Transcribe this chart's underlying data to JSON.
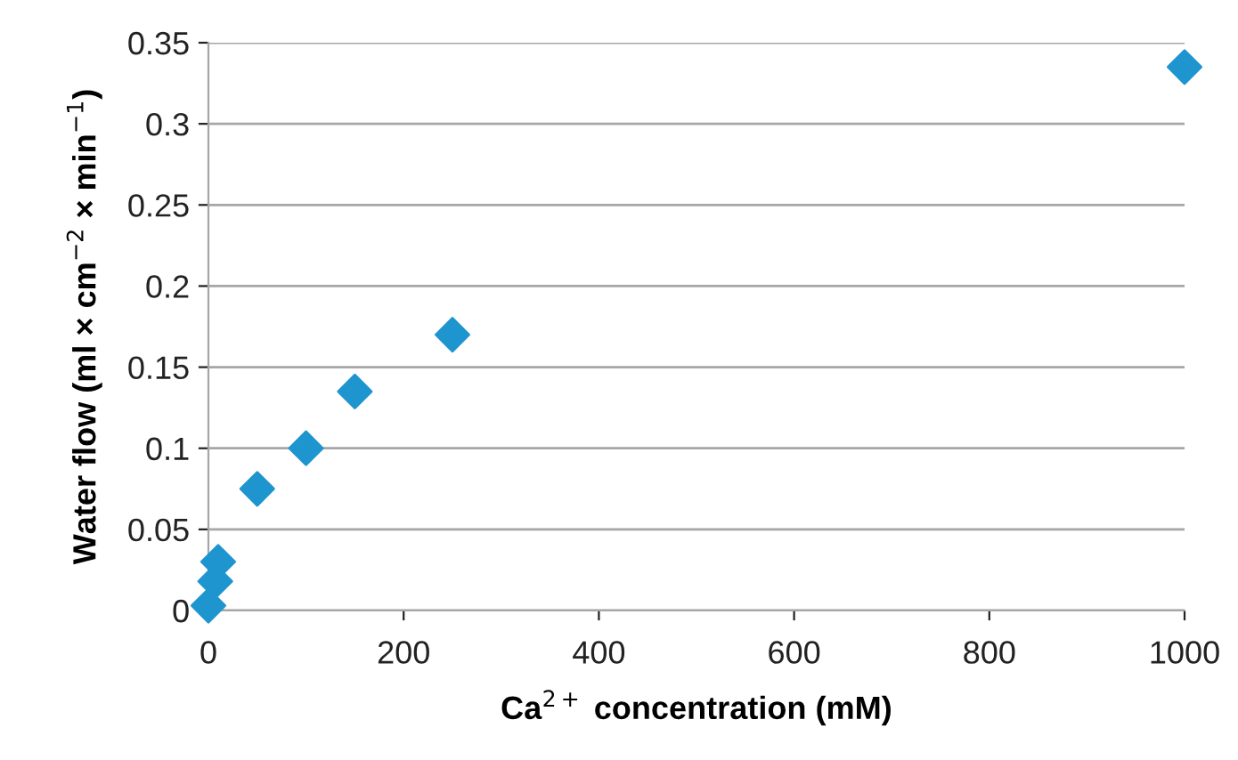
{
  "chart_data": {
    "type": "scatter",
    "xlabel": "Ca$^{2+}$ concentration (mM)",
    "ylabel": "Water flow (ml × cm$^{−2}$ × min$^{−1}$)",
    "x": [
      0,
      1,
      2,
      5,
      7,
      10,
      50,
      100,
      150,
      250,
      1000
    ],
    "series": [
      {
        "color": "#1f95cf",
        "values": [
          0.003,
          null,
          null,
          null,
          0.018,
          0.03,
          0.075,
          0.1,
          0.135,
          0.17,
          0.335
        ]
      }
    ],
    "xlim": [
      0,
      1000
    ],
    "xticks": [
      0,
      200,
      400,
      600,
      800,
      1000
    ],
    "ylim": [
      0,
      0.35
    ],
    "yticks": [
      0,
      0.05,
      0.1,
      0.15,
      0.2,
      0.25,
      0.3,
      0.35
    ],
    "grid": "y",
    "marker": "diamond",
    "legend": false
  }
}
